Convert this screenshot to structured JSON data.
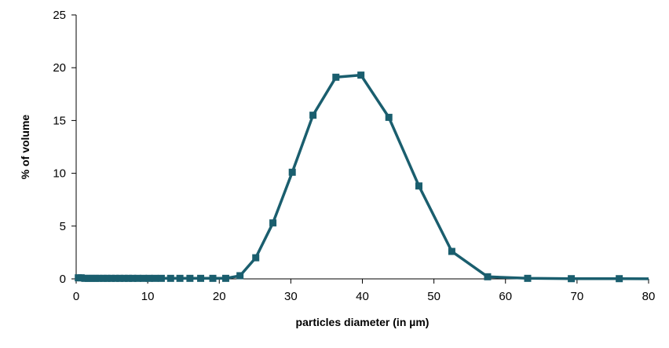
{
  "chart_data": {
    "type": "line",
    "title": "",
    "xlabel": "particles diameter (in µm)",
    "ylabel": "% of volume",
    "xlim": [
      0,
      80
    ],
    "ylim": [
      0,
      25
    ],
    "xticks": [
      0,
      10,
      20,
      30,
      40,
      50,
      60,
      70,
      80
    ],
    "yticks": [
      0,
      5,
      10,
      15,
      20,
      25
    ],
    "grid": false,
    "legend": "none",
    "series": [
      {
        "color": "#1a5e6e",
        "marker": "square",
        "x": [
          0.3,
          0.7,
          1.2,
          1.7,
          2.2,
          2.7,
          3.2,
          3.8,
          4.3,
          4.9,
          5.5,
          6.1,
          6.7,
          7.3,
          7.9,
          8.6,
          9.4,
          10.2,
          11.0,
          11.9,
          13.2,
          14.5,
          15.9,
          17.4,
          19.1,
          20.9,
          22.9,
          25.1,
          27.5,
          30.2,
          33.1,
          36.3,
          39.8,
          43.7,
          47.9,
          52.5,
          57.5,
          63.1,
          69.2,
          75.9,
          83.2
        ],
        "y": [
          0.1,
          0.1,
          0.05,
          0.05,
          0.05,
          0.05,
          0.05,
          0.05,
          0.05,
          0.05,
          0.05,
          0.05,
          0.05,
          0.05,
          0.05,
          0.05,
          0.05,
          0.05,
          0.05,
          0.05,
          0.05,
          0.05,
          0.05,
          0.05,
          0.05,
          0.05,
          0.3,
          2.0,
          5.3,
          10.1,
          15.5,
          19.1,
          19.3,
          15.3,
          8.8,
          2.6,
          0.2,
          0.05,
          0.02,
          0.02,
          0.0
        ]
      }
    ]
  }
}
